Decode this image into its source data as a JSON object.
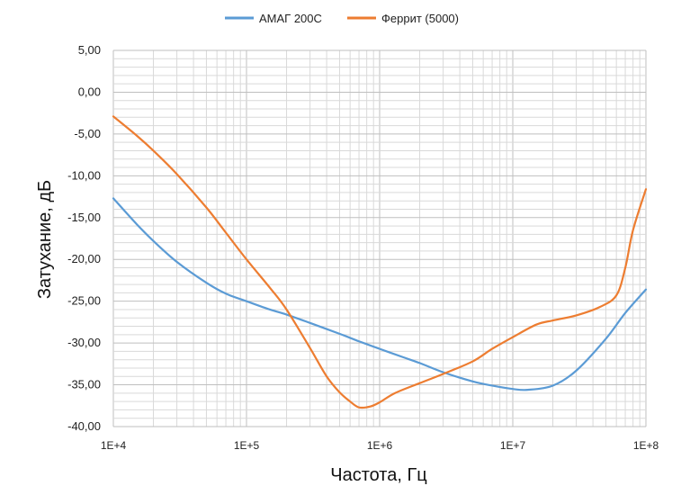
{
  "chart_data": {
    "type": "line",
    "title": "",
    "xlabel": "Частота, Гц",
    "ylabel": "Затухание, дБ",
    "x_scale": "log",
    "xlim": [
      10000,
      100000000
    ],
    "ylim": [
      -40,
      5
    ],
    "y_ticks": [
      "5,00",
      "0,00",
      "-5,00",
      "-10,00",
      "-15,00",
      "-20,00",
      "-25,00",
      "-30,00",
      "-35,00",
      "-40,00"
    ],
    "x_ticks": [
      "1E+4",
      "1E+5",
      "1E+6",
      "1E+7",
      "1E+8"
    ],
    "grid": true,
    "legend_position": "top-center",
    "series": [
      {
        "name": "АМАГ 200С",
        "color": "#5b9bd5",
        "points": [
          [
            10000,
            -12.7
          ],
          [
            15000,
            -15.8
          ],
          [
            20000,
            -17.8
          ],
          [
            30000,
            -20.3
          ],
          [
            50000,
            -22.8
          ],
          [
            70000,
            -24.1
          ],
          [
            100000,
            -25.0
          ],
          [
            150000,
            -26.0
          ],
          [
            200000,
            -26.6
          ],
          [
            300000,
            -27.6
          ],
          [
            500000,
            -28.9
          ],
          [
            700000,
            -29.8
          ],
          [
            1000000,
            -30.7
          ],
          [
            1500000,
            -31.7
          ],
          [
            2000000,
            -32.4
          ],
          [
            3000000,
            -33.5
          ],
          [
            5000000,
            -34.6
          ],
          [
            7000000,
            -35.1
          ],
          [
            10000000,
            -35.5
          ],
          [
            13000000,
            -35.6
          ],
          [
            20000000,
            -35.1
          ],
          [
            30000000,
            -33.3
          ],
          [
            50000000,
            -29.5
          ],
          [
            70000000,
            -26.4
          ],
          [
            100000000,
            -23.6
          ]
        ]
      },
      {
        "name": "Феррит (5000)",
        "color": "#ed7d31",
        "points": [
          [
            10000,
            -2.9
          ],
          [
            15000,
            -5.2
          ],
          [
            20000,
            -7.0
          ],
          [
            30000,
            -9.8
          ],
          [
            50000,
            -13.8
          ],
          [
            70000,
            -16.8
          ],
          [
            100000,
            -20.0
          ],
          [
            150000,
            -23.4
          ],
          [
            200000,
            -26.0
          ],
          [
            300000,
            -30.6
          ],
          [
            400000,
            -34.0
          ],
          [
            500000,
            -35.9
          ],
          [
            600000,
            -37.0
          ],
          [
            700000,
            -37.7
          ],
          [
            850000,
            -37.6
          ],
          [
            1000000,
            -37.1
          ],
          [
            1300000,
            -36.0
          ],
          [
            2000000,
            -34.8
          ],
          [
            3000000,
            -33.7
          ],
          [
            5000000,
            -32.2
          ],
          [
            7000000,
            -30.7
          ],
          [
            10000000,
            -29.3
          ],
          [
            15000000,
            -27.8
          ],
          [
            20000000,
            -27.3
          ],
          [
            30000000,
            -26.7
          ],
          [
            45000000,
            -25.7
          ],
          [
            60000000,
            -24.3
          ],
          [
            70000000,
            -21.0
          ],
          [
            80000000,
            -16.5
          ],
          [
            100000000,
            -11.6
          ]
        ]
      }
    ]
  }
}
